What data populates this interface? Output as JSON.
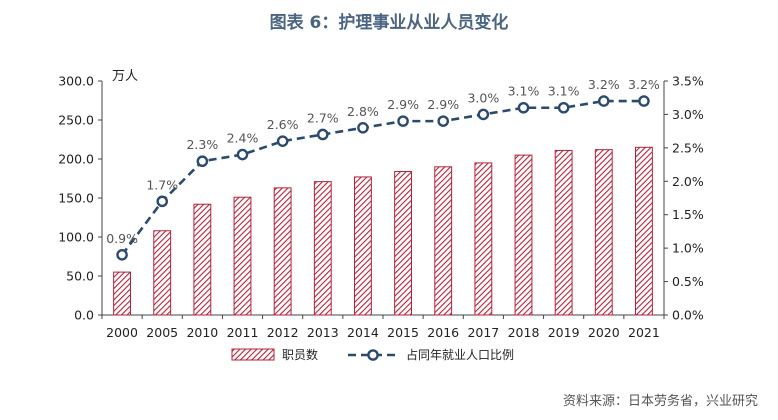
{
  "title": "图表 6：护理事业从业人员变化",
  "source": "资料来源：日本劳务省，兴业研究",
  "colors": {
    "bar": "#b5223a",
    "line": "#2c4a6e",
    "title": "#4a6482"
  },
  "chart_data": {
    "type": "bar",
    "categories": [
      "2000",
      "2005",
      "2010",
      "2011",
      "2012",
      "2013",
      "2014",
      "2015",
      "2016",
      "2017",
      "2018",
      "2019",
      "2020",
      "2021"
    ],
    "series": [
      {
        "name": "职员数",
        "type": "bar",
        "axis": "left",
        "values": [
          55,
          108,
          142,
          151,
          163,
          171,
          177,
          184,
          190,
          195,
          205,
          211,
          212,
          215
        ]
      },
      {
        "name": "占同年就业人口比例",
        "type": "line",
        "axis": "right",
        "style": "dashed-marker",
        "values": [
          0.9,
          1.7,
          2.3,
          2.4,
          2.6,
          2.7,
          2.8,
          2.9,
          2.9,
          3.0,
          3.1,
          3.1,
          3.2,
          3.2
        ],
        "labels": [
          "0.9%",
          "1.7%",
          "2.3%",
          "2.4%",
          "2.6%",
          "2.7%",
          "2.8%",
          "2.9%",
          "2.9%",
          "3.0%",
          "3.1%",
          "3.1%",
          "3.2%",
          "3.2%"
        ]
      }
    ],
    "y_left": {
      "label": "万人",
      "ylim": [
        0,
        300
      ],
      "ticks": [
        "0.0",
        "50.0",
        "100.0",
        "150.0",
        "200.0",
        "250.0",
        "300.0"
      ]
    },
    "y_right": {
      "ylim": [
        0,
        3.5
      ],
      "ticks": [
        "0.0%",
        "0.5%",
        "1.0%",
        "1.5%",
        "2.0%",
        "2.5%",
        "3.0%",
        "3.5%"
      ]
    },
    "grid": false,
    "legend_position": "bottom"
  }
}
